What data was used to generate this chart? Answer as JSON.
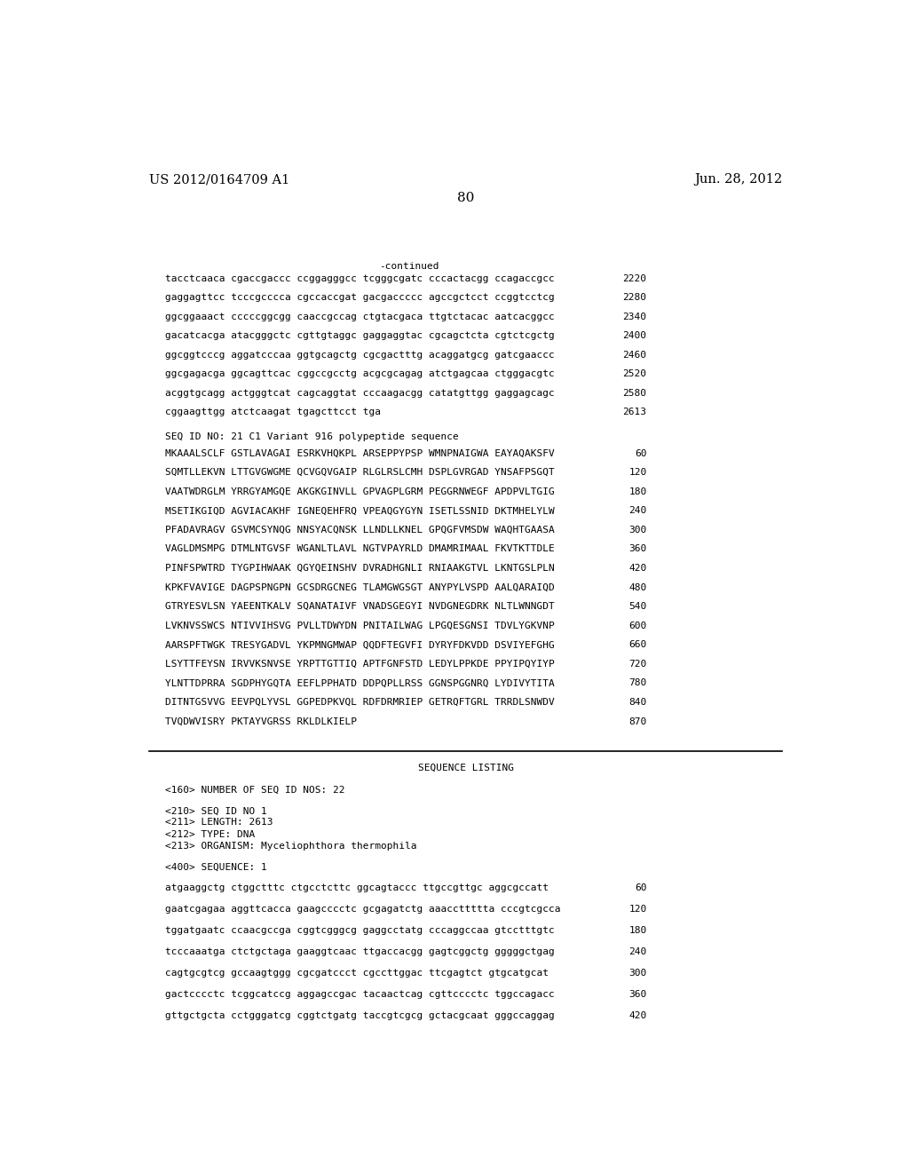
{
  "background_color": "#ffffff",
  "header_left": "US 2012/0164709 A1",
  "header_right": "Jun. 28, 2012",
  "page_number": "80",
  "continued_label": "-continued",
  "top_sequences": [
    {
      "text": "tacctcaaca cgaccgaccc ccggagggcc tcgggcgatc cccactacgg ccagaccgcc",
      "num": "2220"
    },
    {
      "text": "gaggagttcc tcccgcccca cgccaccgat gacgaccccc agccgctcct ccggtcctcg",
      "num": "2280"
    },
    {
      "text": "ggcggaaact cccccggcgg caaccgccag ctgtacgaca ttgtctacac aatcacggcc",
      "num": "2340"
    },
    {
      "text": "gacatcacga atacgggctc cgttgtaggc gaggaggtac cgcagctcta cgtctcgctg",
      "num": "2400"
    },
    {
      "text": "ggcggtcccg aggatcccaa ggtgcagctg cgcgactttg acaggatgcg gatcgaaccc",
      "num": "2460"
    },
    {
      "text": "ggcgagacga ggcagttcac cggccgcctg acgcgcagag atctgagcaa ctgggacgtc",
      "num": "2520"
    },
    {
      "text": "acggtgcagg actgggtcat cagcaggtat cccaagacgg catatgttgg gaggagcagc",
      "num": "2580"
    },
    {
      "text": "cggaagttgg atctcaagat tgagcttcct tga",
      "num": "2613"
    }
  ],
  "seq_id_line": "SEQ ID NO: 21 C1 Variant 916 polypeptide sequence",
  "polypeptide_sequences": [
    {
      "text": "MKAAALSCLF GSTLAVAGAI ESRKVHQKPL ARSEPPYPSP WMNPNAIGWA EAYAQAKSFV",
      "num": "60"
    },
    {
      "text": "SQMTLLEKVN LTTGVGWGME QCVGQVGAIP RLGLRSLCMH DSPLGVRGAD YNSAFPSGQT",
      "num": "120"
    },
    {
      "text": "VAATWDRGLM YRRGYAMGQE AKGKGINVLL GPVAGPLGRM PEGGRNWEGF APDPVLTGIG",
      "num": "180"
    },
    {
      "text": "MSETIKGIQD AGVIACAKHF IGNEQEHFRQ VPEAQGYGYN ISETLSSNID DKTMHELYLW",
      "num": "240"
    },
    {
      "text": "PFADAVRAGV GSVMCSYNQG NNSYACQNSK LLNDLLKNEL GPQGFVMSDW WAQHTGAASA",
      "num": "300"
    },
    {
      "text": "VAGLDMSMPG DTMLNTGVSF WGANLTLAVL NGTVPAYRLD DMAMRIMAAL FKVTKTTDLE",
      "num": "360"
    },
    {
      "text": "PINFSPWTRD TYGPIHWAAK QGYQEINSHV DVRADHGNLI RNIAAKGTVL LKNTGSLPLN",
      "num": "420"
    },
    {
      "text": "KPKFVAVIGE DAGPSPNGPN GCSDRGCNEG TLAMGWGSGT ANYPYLVSPD AALQARAIQD",
      "num": "480"
    },
    {
      "text": "GTRYESVLSN YAEENTKALV SQANATAIVF VNADSGEGYI NVDGNEGDRK NLTLWNNGDT",
      "num": "540"
    },
    {
      "text": "LVKNVSSWCS NTIVVIHSVG PVLLTDWYDN PNITAILWAG LPGQESGNSI TDVLYGKVNP",
      "num": "600"
    },
    {
      "text": "AARSPFTWGK TRESYGADVL YKPMNGMWAP QQDFTEGVFI DYRYFDKVDD DSVIYEFGHG",
      "num": "660"
    },
    {
      "text": "LSYTTFEYSN IRVVKSNVSE YRPTTGTTIQ APTFGNFSTD LEDYLPPKDE PPYIPQYIYP",
      "num": "720"
    },
    {
      "text": "YLNTTDPRRA SGDPHYGQTA EEFLPPHATD DDPQPLLRSS GGNSPGGNRQ LYDIVYTITA",
      "num": "780"
    },
    {
      "text": "DITNTGSVVG EEVPQLYVSL GGPEDPKVQL RDFDRMRIEP GETRQFTGRL TRRDLSNWDV",
      "num": "840"
    },
    {
      "text": "TVQDWVISRY PKTAYVGRSS RKLDLKIELP",
      "num": "870"
    }
  ],
  "section_title": "SEQUENCE LISTING",
  "listing_block": [
    {
      "text": "<160> NUMBER OF SEQ ID NOS: 22",
      "blank_after": true
    },
    {
      "text": "<210> SEQ ID NO 1",
      "blank_after": false
    },
    {
      "text": "<211> LENGTH: 2613",
      "blank_after": false
    },
    {
      "text": "<212> TYPE: DNA",
      "blank_after": false
    },
    {
      "text": "<213> ORGANISM: Myceliophthora thermophila",
      "blank_after": true
    },
    {
      "text": "<400> SEQUENCE: 1",
      "blank_after": true
    },
    {
      "text": "atgaaggctg ctggctttc ctgcctcttc ggcagtaccc ttgccgttgc aggcgccatt",
      "num": "60",
      "blank_after": true
    },
    {
      "text": "gaatcgagaa aggttcacca gaagcccctc gcgagatctg aaaccttttta cccgtcgcca",
      "num": "120",
      "blank_after": true
    },
    {
      "text": "tggatgaatc ccaacgccga cggtcgggcg gaggcctatg cccaggccaa gtcctttgtc",
      "num": "180",
      "blank_after": true
    },
    {
      "text": "tcccaaatga ctctgctaga gaaggtcaac ttgaccacgg gagtcggctg gggggctgag",
      "num": "240",
      "blank_after": true
    },
    {
      "text": "cagtgcgtcg gccaagtggg cgcgatccct cgccttggac ttcgagtct gtgcatgcat",
      "num": "300",
      "blank_after": true
    },
    {
      "text": "gactcccctc tcggcatccg aggagccgac tacaactcag cgttcccctc tggccagacc",
      "num": "360",
      "blank_after": true
    },
    {
      "text": "gttgctgcta cctgggatcg cggtctgatg taccgtcgcg gctacgcaat gggccaggag",
      "num": "420",
      "blank_after": false
    }
  ]
}
